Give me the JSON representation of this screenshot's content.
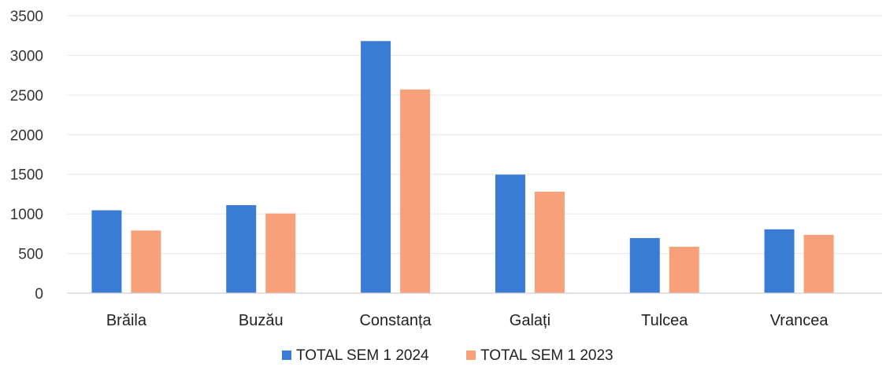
{
  "chart_data": {
    "type": "bar",
    "categories": [
      "Brăila",
      "Buzău",
      "Constanța",
      "Galați",
      "Tulcea",
      "Vrancea"
    ],
    "series": [
      {
        "name": "TOTAL SEM 1 2024",
        "values": [
          1045,
          1110,
          3180,
          1495,
          695,
          805
        ],
        "color": "#3a7bd5"
      },
      {
        "name": "TOTAL SEM 1 2023",
        "values": [
          790,
          1005,
          2570,
          1280,
          585,
          735
        ],
        "color": "#f7a07a"
      }
    ],
    "title": "",
    "xlabel": "",
    "ylabel": "",
    "ylim": [
      0,
      3500
    ],
    "yticks": [
      "0",
      "500",
      "1000",
      "1500",
      "2000",
      "2500",
      "3000",
      "3500"
    ],
    "grid": true,
    "legend_position": "bottom-center"
  }
}
